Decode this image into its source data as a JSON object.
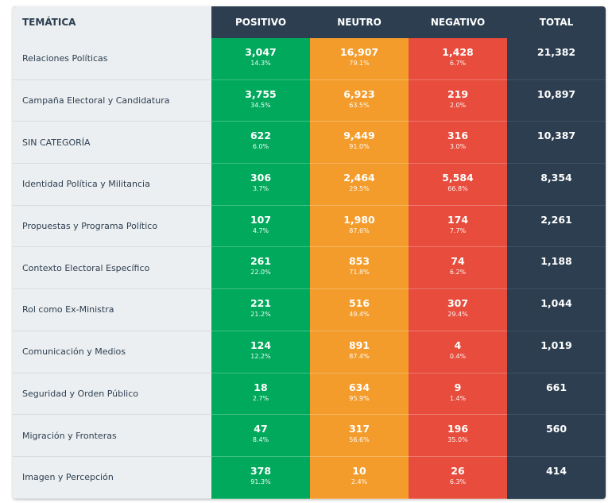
{
  "headers": {
    "tematica": "TEMÁTICA",
    "positivo": "POSITIVO",
    "neutro": "NEUTRO",
    "negativo": "NEGATIVO",
    "total": "TOTAL"
  },
  "colors": {
    "header_bg": "#2c3e50",
    "positivo": "#00a95c",
    "neutro": "#f39c2b",
    "negativo": "#e74c3c",
    "total": "#2c3e50",
    "tema_bg": "#eceff1"
  },
  "rows": [
    {
      "tema": "Relaciones Políticas",
      "pos": "3,047",
      "pos_pct": "14.3%",
      "neu": "16,907",
      "neu_pct": "79.1%",
      "neg": "1,428",
      "neg_pct": "6.7%",
      "total": "21,382"
    },
    {
      "tema": "Campaña Electoral y Candidatura",
      "pos": "3,755",
      "pos_pct": "34.5%",
      "neu": "6,923",
      "neu_pct": "63.5%",
      "neg": "219",
      "neg_pct": "2.0%",
      "total": "10,897"
    },
    {
      "tema": "SIN CATEGORÍA",
      "pos": "622",
      "pos_pct": "6.0%",
      "neu": "9,449",
      "neu_pct": "91.0%",
      "neg": "316",
      "neg_pct": "3.0%",
      "total": "10,387"
    },
    {
      "tema": "Identidad Política y Militancia",
      "pos": "306",
      "pos_pct": "3.7%",
      "neu": "2,464",
      "neu_pct": "29.5%",
      "neg": "5,584",
      "neg_pct": "66.8%",
      "total": "8,354"
    },
    {
      "tema": "Propuestas y Programa Político",
      "pos": "107",
      "pos_pct": "4.7%",
      "neu": "1,980",
      "neu_pct": "87.6%",
      "neg": "174",
      "neg_pct": "7.7%",
      "total": "2,261"
    },
    {
      "tema": "Contexto Electoral Específico",
      "pos": "261",
      "pos_pct": "22.0%",
      "neu": "853",
      "neu_pct": "71.8%",
      "neg": "74",
      "neg_pct": "6.2%",
      "total": "1,188"
    },
    {
      "tema": "Rol como Ex-Ministra",
      "pos": "221",
      "pos_pct": "21.2%",
      "neu": "516",
      "neu_pct": "49.4%",
      "neg": "307",
      "neg_pct": "29.4%",
      "total": "1,044"
    },
    {
      "tema": "Comunicación y Medios",
      "pos": "124",
      "pos_pct": "12.2%",
      "neu": "891",
      "neu_pct": "87.4%",
      "neg": "4",
      "neg_pct": "0.4%",
      "total": "1,019"
    },
    {
      "tema": "Seguridad y Orden Público",
      "pos": "18",
      "pos_pct": "2.7%",
      "neu": "634",
      "neu_pct": "95.9%",
      "neg": "9",
      "neg_pct": "1.4%",
      "total": "661"
    },
    {
      "tema": "Migración y Fronteras",
      "pos": "47",
      "pos_pct": "8.4%",
      "neu": "317",
      "neu_pct": "56.6%",
      "neg": "196",
      "neg_pct": "35.0%",
      "total": "560"
    },
    {
      "tema": "Imagen y Percepción",
      "pos": "378",
      "pos_pct": "91.3%",
      "neu": "10",
      "neu_pct": "2.4%",
      "neg": "26",
      "neg_pct": "6.3%",
      "total": "414"
    }
  ]
}
